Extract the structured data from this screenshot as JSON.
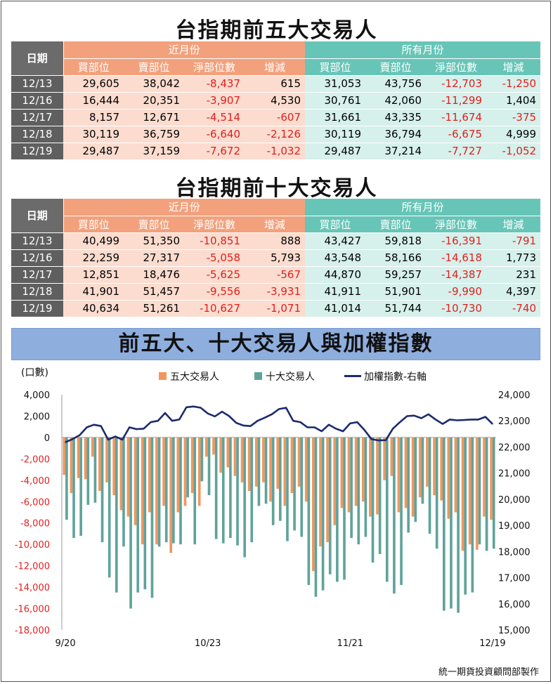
{
  "table1": {
    "title": "台指期前五大交易人",
    "date_header": "日期",
    "group_near": "近月份",
    "group_all": "所有月份",
    "columns": [
      "買部位",
      "賣部位",
      "淨部位數",
      "增減",
      "買部位",
      "賣部位",
      "淨部位數",
      "增減"
    ],
    "rows": [
      {
        "date": "12/13",
        "cells": [
          "29,605",
          "38,042",
          "-8,437",
          "615",
          "31,053",
          "43,756",
          "-12,703",
          "-1,250"
        ]
      },
      {
        "date": "12/16",
        "cells": [
          "16,444",
          "20,351",
          "-3,907",
          "4,530",
          "30,761",
          "42,060",
          "-11,299",
          "1,404"
        ]
      },
      {
        "date": "12/17",
        "cells": [
          "8,157",
          "12,671",
          "-4,514",
          "-607",
          "31,661",
          "43,335",
          "-11,674",
          "-375"
        ]
      },
      {
        "date": "12/18",
        "cells": [
          "30,119",
          "36,759",
          "-6,640",
          "-2,126",
          "30,119",
          "36,794",
          "-6,675",
          "4,999"
        ]
      },
      {
        "date": "12/19",
        "cells": [
          "29,487",
          "37,159",
          "-7,672",
          "-1,032",
          "29,487",
          "37,214",
          "-7,727",
          "-1,052"
        ]
      }
    ]
  },
  "table2": {
    "title": "台指期前十大交易人",
    "date_header": "日期",
    "group_near": "近月份",
    "group_all": "所有月份",
    "columns": [
      "買部位",
      "賣部位",
      "淨部位數",
      "增減",
      "買部位",
      "賣部位",
      "淨部位數",
      "增減"
    ],
    "rows": [
      {
        "date": "12/13",
        "cells": [
          "40,499",
          "51,350",
          "-10,851",
          "888",
          "43,427",
          "59,818",
          "-16,391",
          "-791"
        ]
      },
      {
        "date": "12/16",
        "cells": [
          "22,259",
          "27,317",
          "-5,058",
          "5,793",
          "43,548",
          "58,166",
          "-14,618",
          "1,773"
        ]
      },
      {
        "date": "12/17",
        "cells": [
          "12,851",
          "18,476",
          "-5,625",
          "-567",
          "44,870",
          "59,257",
          "-14,387",
          "231"
        ]
      },
      {
        "date": "12/18",
        "cells": [
          "41,901",
          "51,457",
          "-9,556",
          "-3,931",
          "41,911",
          "51,901",
          "-9,990",
          "4,397"
        ]
      },
      {
        "date": "12/19",
        "cells": [
          "40,634",
          "51,261",
          "-10,627",
          "-1,071",
          "41,014",
          "51,744",
          "-10,730",
          "-740"
        ]
      }
    ]
  },
  "chart_title": "前五大、十大交易人與加權指數",
  "footer": "統一期貨投資顧問部製作",
  "colors": {
    "top5": "#f0975f",
    "top10": "#5fa39b",
    "index": "#1c2a6e",
    "negative": "#e0201e"
  },
  "chart_data": {
    "type": "bar",
    "title": "前五大、十大交易人與加權指數",
    "ylabel": "(口數)",
    "ylim": [
      -18000,
      4000
    ],
    "y2lim": [
      15000,
      24000
    ],
    "yticks": [
      "4,000",
      "2,000",
      "0",
      "-2,000",
      "-4,000",
      "-6,000",
      "-8,000",
      "-10,000",
      "-12,000",
      "-14,000",
      "-16,000",
      "-18,000"
    ],
    "y2ticks": [
      "24,000",
      "23,000",
      "22,000",
      "21,000",
      "20,000",
      "19,000",
      "18,000",
      "17,000",
      "16,000",
      "15,000"
    ],
    "xticks": [
      {
        "label": "9/20",
        "i": 0
      },
      {
        "label": "10/23",
        "i": 20
      },
      {
        "label": "11/21",
        "i": 40
      },
      {
        "label": "12/19",
        "i": 60
      }
    ],
    "legend": [
      "五大交易人",
      "十大交易人",
      "加權指數-右軸"
    ],
    "n": 61,
    "series": [
      {
        "name": "五大交易人",
        "type": "bar",
        "values": [
          -3500,
          -5200,
          -3800,
          -3900,
          -1800,
          -5000,
          -4200,
          -5400,
          -6800,
          -7400,
          -8200,
          -10000,
          -7000,
          -10000,
          -6400,
          -10800,
          -7000,
          -6400,
          -5200,
          -6400,
          -1800,
          -1600,
          -3300,
          -2800,
          -3600,
          -4200,
          -5000,
          -4600,
          -4200,
          -6000,
          -4800,
          -6400,
          -5200,
          -4600,
          -6000,
          -12500,
          -10200,
          -9800,
          -8200,
          -6600,
          -7000,
          -6400,
          -6000,
          -7400,
          -7200,
          -4000,
          -3600,
          -7000,
          -6600,
          -7400,
          -5600,
          -4600,
          -5400,
          -5900,
          -7600,
          -7000,
          -10600,
          -10000,
          -10500,
          -7400,
          -7700
        ]
      },
      {
        "name": "十大交易人",
        "type": "bar",
        "values": [
          -7700,
          -9400,
          -9200,
          -6300,
          -6100,
          -9800,
          -13100,
          -14500,
          -10200,
          -16000,
          -14500,
          -14200,
          -15000,
          -10200,
          -9800,
          -9900,
          -10000,
          -5600,
          -10000,
          -4100,
          -5400,
          -9500,
          -9900,
          -9400,
          -10100,
          -11200,
          -9800,
          -6400,
          -6200,
          -8200,
          -7800,
          -9700,
          -8700,
          -9300,
          -13800,
          -14900,
          -14300,
          -12800,
          -13500,
          -13300,
          -9400,
          -10000,
          -9300,
          -11700,
          -10900,
          -13500,
          -14600,
          -13800,
          -8900,
          -7900,
          -6200,
          -9000,
          -10400,
          -16200,
          -16000,
          -16400,
          -14700,
          -14500,
          -10000,
          -10600,
          -10400
        ]
      },
      {
        "name": "加權指數-右軸",
        "type": "line",
        "axis": "right",
        "values": [
          22180,
          22300,
          22450,
          22750,
          22850,
          22800,
          22280,
          22400,
          22280,
          22750,
          22680,
          22700,
          22950,
          23000,
          23300,
          23000,
          23050,
          23520,
          23550,
          23500,
          23280,
          23170,
          23350,
          23180,
          22920,
          22820,
          22800,
          23000,
          23120,
          23250,
          23450,
          23500,
          23000,
          22950,
          22750,
          22750,
          22600,
          22850,
          22700,
          22600,
          22900,
          22950,
          22650,
          22300,
          22250,
          22260,
          22700,
          22950,
          23180,
          23200,
          23100,
          23250,
          23050,
          22880,
          23050,
          23020,
          23030,
          23050,
          23050,
          23150,
          22880
        ]
      }
    ]
  }
}
